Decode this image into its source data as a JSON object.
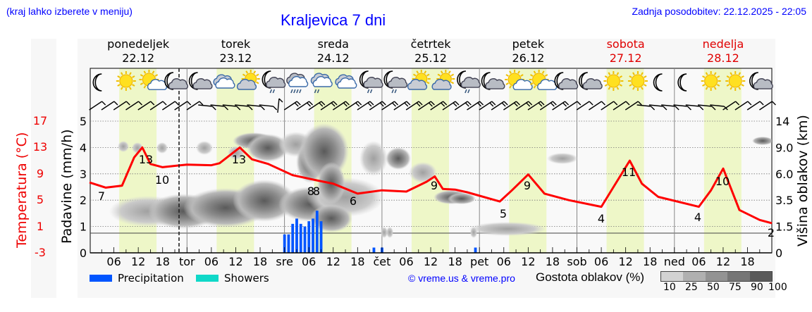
{
  "header": {
    "region_hint": "(kraj lahko izberete v meniju)",
    "title": "Kraljevica 7 dni",
    "last_update": "Zadnja posodobitev: 22.12.2025 - 22:05"
  },
  "days": [
    {
      "name": "ponedeljek",
      "date": "22.12",
      "weekend": false
    },
    {
      "name": "torek",
      "date": "23.12",
      "weekend": false
    },
    {
      "name": "sreda",
      "date": "24.12",
      "weekend": false
    },
    {
      "name": "četrtek",
      "date": "25.12",
      "weekend": false
    },
    {
      "name": "petek",
      "date": "26.12",
      "weekend": false
    },
    {
      "name": "sobota",
      "date": "27.12",
      "weekend": true
    },
    {
      "name": "nedelja",
      "date": "28.12",
      "weekend": true
    }
  ],
  "axes": {
    "left_outer_label": "Temperatura (°C)",
    "left_inner_label": "Padavine (mm/h)",
    "right_label": "Višina oblakov (km)",
    "temp_ticks": [
      "17",
      "13",
      "9",
      "5",
      "1",
      "-3"
    ],
    "precip_ticks": [
      "5",
      "4",
      "3",
      "2",
      "1",
      "0"
    ],
    "cloud_height_ticks": [
      "14",
      "9.0",
      "6.0",
      "3.5",
      "1.5",
      "0"
    ],
    "x_ticks": [
      "06",
      "12",
      "18",
      "tor",
      "06",
      "12",
      "18",
      "sre",
      "06",
      "12",
      "18",
      "čet",
      "06",
      "12",
      "18",
      "pet",
      "06",
      "12",
      "18",
      "sob",
      "06",
      "12",
      "18",
      "ned",
      "06",
      "12",
      "18"
    ]
  },
  "legend": {
    "precipitation": {
      "label": "Precipitation",
      "color": "#0055ff"
    },
    "showers": {
      "label": "Showers",
      "color": "#10d8c8"
    },
    "copyright": "© vreme.us & vreme.pro",
    "cloud_density_title": "Gostota oblakov (%)",
    "cloud_density_scale": [
      "10",
      "25",
      "50",
      "75",
      "90",
      "100"
    ],
    "cloud_density_colors": [
      "#d2d2d2",
      "#b4b4b4",
      "#969696",
      "#787878",
      "#5a5a5a"
    ]
  },
  "colors": {
    "temperature_line": "#ff0000",
    "daylight_band": "#eef7c8",
    "title_blue": "#0000ff",
    "weekend_red": "#e00000"
  },
  "icons": [
    "moon",
    "sun",
    "sun-cloud",
    "moon-cloud",
    "moon-cloud",
    "cloud",
    "sun-cloud-large",
    "moon-rain",
    "cloud-rain-heavy",
    "cloud-rain",
    "cloud",
    "moon-rain",
    "moon-rain",
    "sun-cloud-large",
    "sun-cloud-large",
    "moon-rain",
    "moon-cloud",
    "sun-cloud",
    "sun-cloud",
    "moon-cloud",
    "moon-cloud",
    "sun",
    "sun",
    "moon",
    "moon",
    "sun",
    "sun",
    "moon-cloud"
  ],
  "chart_data": {
    "type": "line",
    "title": "Kraljevica 7 dni",
    "xlabel": "",
    "ylabel": "Temperatura (°C) / Padavine (mm/h)",
    "x_range": [
      "22.12 00:00",
      "29.12 00:00"
    ],
    "temperature": {
      "unit": "°C",
      "ylim": [
        -3,
        17
      ],
      "points": [
        {
          "t": "22.12 00:00",
          "v": 7.7
        },
        {
          "t": "22.12 04:00",
          "v": 6.9
        },
        {
          "t": "22.12 08:00",
          "v": 7.2
        },
        {
          "t": "22.12 11:00",
          "v": 11.5
        },
        {
          "t": "22.12 13:00",
          "v": 13.0
        },
        {
          "t": "22.12 15:00",
          "v": 10.5
        },
        {
          "t": "22.12 18:00",
          "v": 10.0
        },
        {
          "t": "23.12 00:00",
          "v": 10.4
        },
        {
          "t": "23.12 06:00",
          "v": 10.3
        },
        {
          "t": "23.12 08:00",
          "v": 10.6
        },
        {
          "t": "23.12 13:00",
          "v": 13.0
        },
        {
          "t": "23.12 16:00",
          "v": 11.2
        },
        {
          "t": "23.12 20:00",
          "v": 10.5
        },
        {
          "t": "24.12 02:00",
          "v": 8.8
        },
        {
          "t": "24.12 08:00",
          "v": 8.0
        },
        {
          "t": "24.12 12:00",
          "v": 7.5
        },
        {
          "t": "24.12 18:00",
          "v": 6.0
        },
        {
          "t": "25.12 00:00",
          "v": 6.5
        },
        {
          "t": "25.12 06:00",
          "v": 6.3
        },
        {
          "t": "25.12 11:00",
          "v": 7.8
        },
        {
          "t": "25.12 13:00",
          "v": 8.6
        },
        {
          "t": "25.12 15:00",
          "v": 6.7
        },
        {
          "t": "25.12 18:00",
          "v": 6.6
        },
        {
          "t": "25.12 21:00",
          "v": 6.2
        },
        {
          "t": "26.12 05:00",
          "v": 4.8
        },
        {
          "t": "26.12 08:00",
          "v": 6.5
        },
        {
          "t": "26.12 12:00",
          "v": 8.9
        },
        {
          "t": "26.12 16:00",
          "v": 6.0
        },
        {
          "t": "26.12 22:00",
          "v": 5.0
        },
        {
          "t": "27.12 06:00",
          "v": 4.0
        },
        {
          "t": "27.12 09:00",
          "v": 7.0
        },
        {
          "t": "27.12 13:00",
          "v": 11.0
        },
        {
          "t": "27.12 16:00",
          "v": 7.5
        },
        {
          "t": "27.12 20:00",
          "v": 5.5
        },
        {
          "t": "28.12 06:00",
          "v": 4.0
        },
        {
          "t": "28.12 09:00",
          "v": 6.5
        },
        {
          "t": "28.12 12:00",
          "v": 9.8
        },
        {
          "t": "28.12 16:00",
          "v": 3.5
        },
        {
          "t": "28.12 21:00",
          "v": 2.0
        },
        {
          "t": "29.12 00:00",
          "v": 1.5
        }
      ],
      "labels": [
        {
          "t": "22.12 04:00",
          "v": "7"
        },
        {
          "t": "22.12 13:00",
          "v": "13"
        },
        {
          "t": "22.12 18:00",
          "v": "10"
        },
        {
          "t": "23.12 13:00",
          "v": "13"
        },
        {
          "t": "24.12 08:00",
          "v": "8"
        },
        {
          "t": "24.12 09:00",
          "v": "8"
        },
        {
          "t": "24.12 16:00",
          "v": "6"
        },
        {
          "t": "25.12 13:00",
          "v": "9"
        },
        {
          "t": "26.12 05:00",
          "v": "5"
        },
        {
          "t": "26.12 12:00",
          "v": "9"
        },
        {
          "t": "27.12 06:00",
          "v": "4"
        },
        {
          "t": "27.12 13:00",
          "v": "11"
        },
        {
          "t": "28.12 06:00",
          "v": "4"
        },
        {
          "t": "28.12 12:00",
          "v": "10"
        },
        {
          "t": "28.12 23:00",
          "v": "2"
        }
      ]
    },
    "precipitation": {
      "unit": "mm/h",
      "ylim": [
        0,
        5
      ],
      "bars": [
        {
          "t": "24.12 00:00",
          "v": 0.7
        },
        {
          "t": "24.12 01:00",
          "v": 0.7
        },
        {
          "t": "24.12 02:00",
          "v": 1.1
        },
        {
          "t": "24.12 03:00",
          "v": 1.3
        },
        {
          "t": "24.12 04:00",
          "v": 1.1
        },
        {
          "t": "24.12 05:00",
          "v": 1.0
        },
        {
          "t": "24.12 06:00",
          "v": 1.2
        },
        {
          "t": "24.12 07:00",
          "v": 1.3
        },
        {
          "t": "24.12 08:00",
          "v": 1.6
        },
        {
          "t": "24.12 09:00",
          "v": 1.2
        },
        {
          "t": "24.12 22:00",
          "v": 0.2
        },
        {
          "t": "25.12 00:00",
          "v": 0.2
        },
        {
          "t": "25.12 23:00",
          "v": 0.2
        }
      ]
    },
    "cloud_height_axis": {
      "unit": "km",
      "ticks": [
        0,
        1.5,
        3.5,
        6.0,
        9.0,
        14
      ]
    },
    "daylight_bands": [
      "07:30-16:30 each day"
    ],
    "now_marker": "22.12 22:05",
    "grid": true,
    "legend_position": "bottom"
  }
}
